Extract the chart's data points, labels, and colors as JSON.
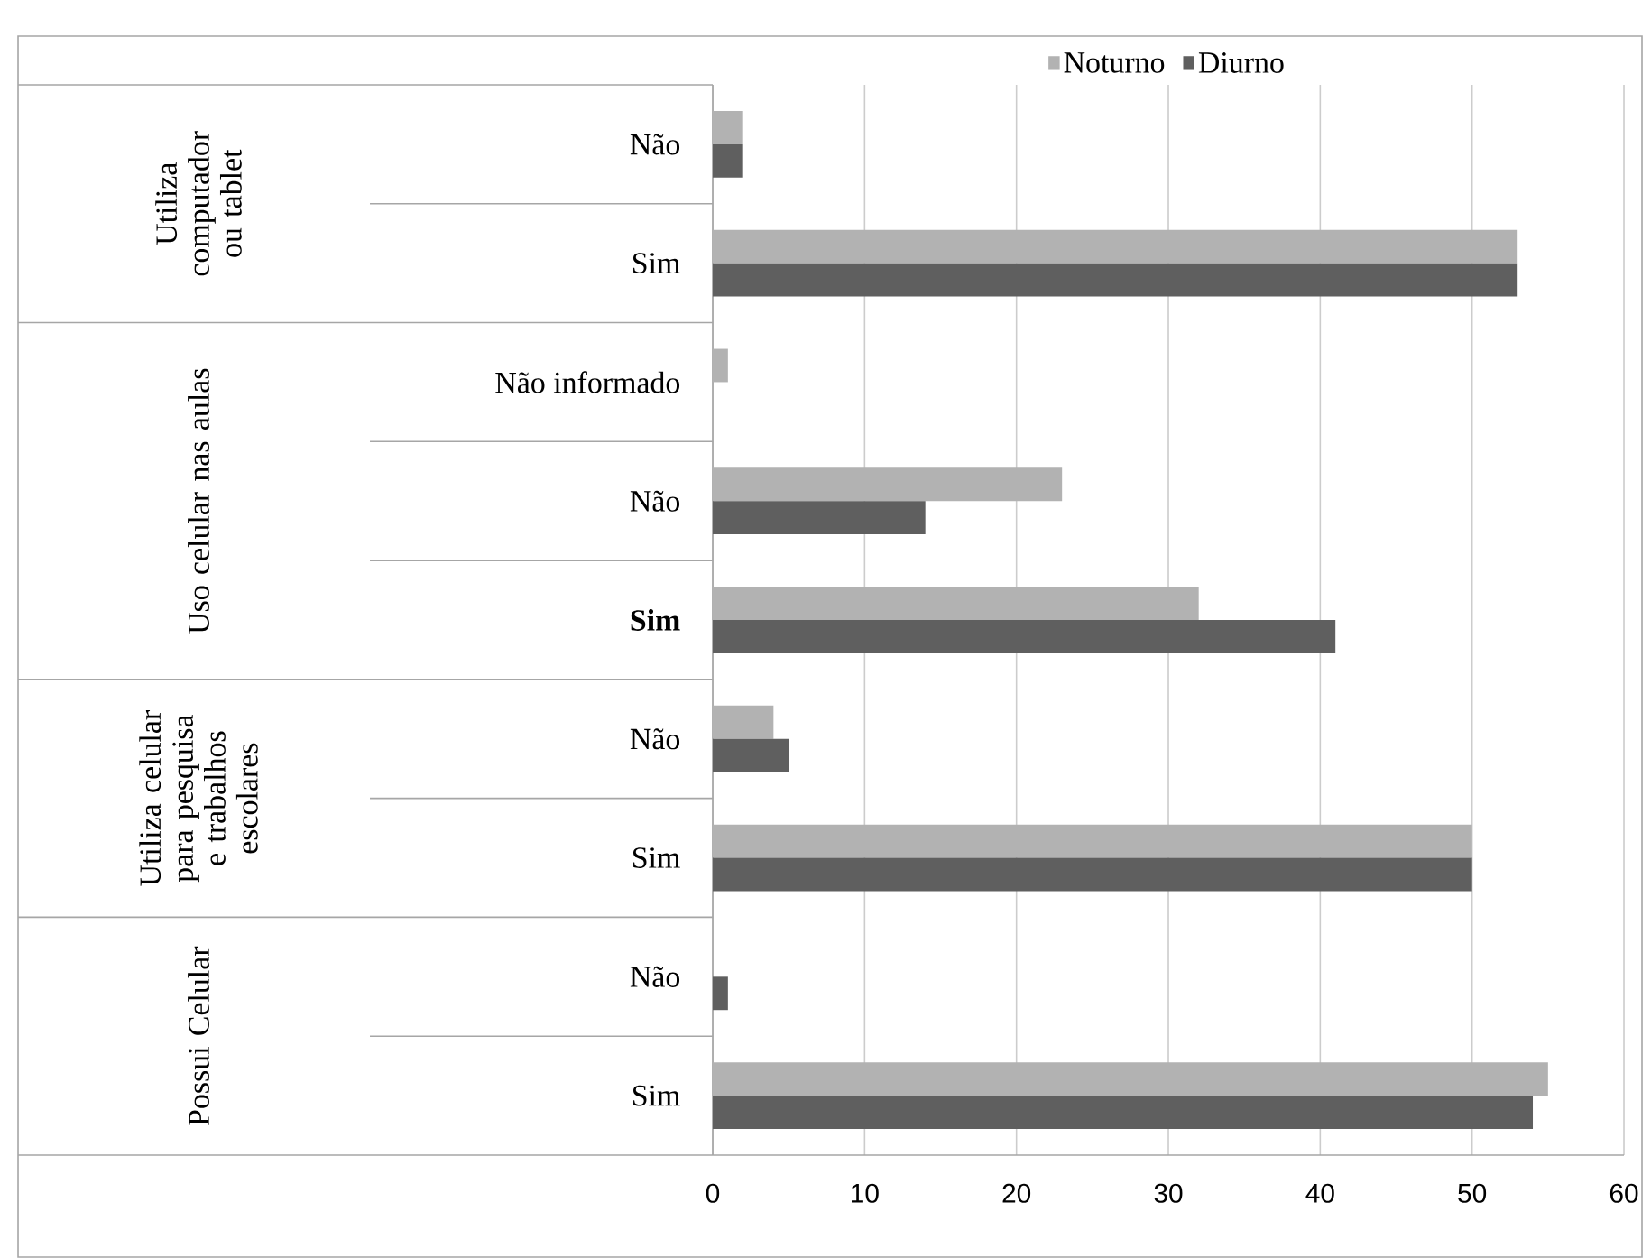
{
  "chart_data": {
    "type": "bar",
    "orientation": "horizontal",
    "categories": [
      "Não",
      "Sim",
      "Não informado",
      "Não",
      "**Sim**",
      "Não",
      "Sim",
      "Não",
      "Sim"
    ],
    "series": [
      {
        "name": "Noturno",
        "color": "#b2b2b2",
        "values": [
          2,
          53,
          1,
          23,
          32,
          4,
          50,
          0,
          55
        ]
      },
      {
        "name": "Diurno",
        "color": "#5f5f5f",
        "values": [
          2,
          53,
          0,
          14,
          41,
          5,
          50,
          1,
          54
        ]
      }
    ],
    "annotations": [
      "Utiliza computador ou tablet",
      "Uso celular nas aulas",
      "Utiliza celular para pesquisa e trabalhos escolares",
      "Possui Celular"
    ],
    "xlim": [
      0,
      60
    ],
    "xticks": [
      0,
      10,
      20,
      30,
      40,
      50,
      60
    ],
    "grid": "x",
    "legend": "top"
  }
}
